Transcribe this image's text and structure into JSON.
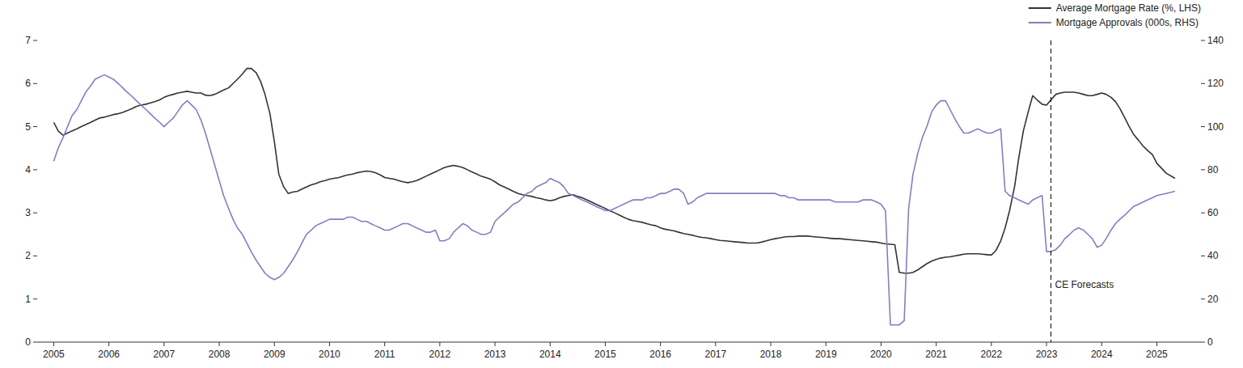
{
  "chart_data": {
    "type": "line",
    "x": [
      2005.0,
      2005.08,
      2005.17,
      2005.25,
      2005.33,
      2005.42,
      2005.5,
      2005.58,
      2005.67,
      2005.75,
      2005.83,
      2005.92,
      2006.0,
      2006.08,
      2006.17,
      2006.25,
      2006.33,
      2006.42,
      2006.5,
      2006.58,
      2006.67,
      2006.75,
      2006.83,
      2006.92,
      2007.0,
      2007.08,
      2007.17,
      2007.25,
      2007.33,
      2007.42,
      2007.5,
      2007.58,
      2007.67,
      2007.75,
      2007.83,
      2007.92,
      2008.0,
      2008.08,
      2008.17,
      2008.25,
      2008.33,
      2008.42,
      2008.5,
      2008.58,
      2008.67,
      2008.75,
      2008.83,
      2008.92,
      2009.0,
      2009.08,
      2009.17,
      2009.25,
      2009.33,
      2009.42,
      2009.5,
      2009.58,
      2009.67,
      2009.75,
      2009.83,
      2009.92,
      2010.0,
      2010.08,
      2010.17,
      2010.25,
      2010.33,
      2010.42,
      2010.5,
      2010.58,
      2010.67,
      2010.75,
      2010.83,
      2010.92,
      2011.0,
      2011.08,
      2011.17,
      2011.25,
      2011.33,
      2011.42,
      2011.5,
      2011.58,
      2011.67,
      2011.75,
      2011.83,
      2011.92,
      2012.0,
      2012.08,
      2012.17,
      2012.25,
      2012.33,
      2012.42,
      2012.5,
      2012.58,
      2012.67,
      2012.75,
      2012.83,
      2012.92,
      2013.0,
      2013.08,
      2013.17,
      2013.25,
      2013.33,
      2013.42,
      2013.5,
      2013.58,
      2013.67,
      2013.75,
      2013.83,
      2013.92,
      2014.0,
      2014.08,
      2014.17,
      2014.25,
      2014.33,
      2014.42,
      2014.5,
      2014.58,
      2014.67,
      2014.75,
      2014.83,
      2014.92,
      2015.0,
      2015.08,
      2015.17,
      2015.25,
      2015.33,
      2015.42,
      2015.5,
      2015.58,
      2015.67,
      2015.75,
      2015.83,
      2015.92,
      2016.0,
      2016.08,
      2016.17,
      2016.25,
      2016.33,
      2016.42,
      2016.5,
      2016.58,
      2016.67,
      2016.75,
      2016.83,
      2016.92,
      2017.0,
      2017.08,
      2017.17,
      2017.25,
      2017.33,
      2017.42,
      2017.5,
      2017.58,
      2017.67,
      2017.75,
      2017.83,
      2017.92,
      2018.0,
      2018.08,
      2018.17,
      2018.25,
      2018.33,
      2018.42,
      2018.5,
      2018.58,
      2018.67,
      2018.75,
      2018.83,
      2018.92,
      2019.0,
      2019.08,
      2019.17,
      2019.25,
      2019.33,
      2019.42,
      2019.5,
      2019.58,
      2019.67,
      2019.75,
      2019.83,
      2019.92,
      2020.0,
      2020.08,
      2020.17,
      2020.25,
      2020.33,
      2020.42,
      2020.5,
      2020.58,
      2020.67,
      2020.75,
      2020.83,
      2020.92,
      2021.0,
      2021.08,
      2021.17,
      2021.25,
      2021.33,
      2021.42,
      2021.5,
      2021.58,
      2021.67,
      2021.75,
      2021.83,
      2021.92,
      2022.0,
      2022.08,
      2022.17,
      2022.25,
      2022.33,
      2022.42,
      2022.5,
      2022.58,
      2022.67,
      2022.75,
      2022.83,
      2022.92,
      2023.0,
      2023.08,
      2023.17,
      2023.25,
      2023.33,
      2023.42,
      2023.5,
      2023.58,
      2023.67,
      2023.75,
      2023.83,
      2023.92,
      2024.0,
      2024.08,
      2024.17,
      2024.25,
      2024.33,
      2024.42,
      2024.5,
      2024.58,
      2024.67,
      2024.75,
      2024.83,
      2024.92,
      2025.0,
      2025.17,
      2025.33
    ],
    "series": [
      {
        "name": "Average Mortgage Rate (%, LHS)",
        "color": "#333333",
        "values": [
          5.1,
          4.9,
          4.8,
          4.85,
          4.9,
          4.95,
          5.0,
          5.05,
          5.1,
          5.15,
          5.2,
          5.22,
          5.25,
          5.28,
          5.3,
          5.33,
          5.37,
          5.42,
          5.47,
          5.5,
          5.52,
          5.55,
          5.58,
          5.62,
          5.68,
          5.72,
          5.75,
          5.78,
          5.8,
          5.82,
          5.8,
          5.78,
          5.78,
          5.73,
          5.72,
          5.75,
          5.8,
          5.85,
          5.9,
          6.0,
          6.1,
          6.22,
          6.35,
          6.35,
          6.25,
          6.05,
          5.75,
          5.3,
          4.65,
          3.9,
          3.6,
          3.45,
          3.48,
          3.5,
          3.55,
          3.6,
          3.65,
          3.68,
          3.72,
          3.75,
          3.78,
          3.8,
          3.82,
          3.85,
          3.88,
          3.9,
          3.93,
          3.95,
          3.97,
          3.96,
          3.93,
          3.88,
          3.82,
          3.8,
          3.78,
          3.75,
          3.72,
          3.7,
          3.72,
          3.75,
          3.8,
          3.85,
          3.9,
          3.95,
          4.0,
          4.05,
          4.08,
          4.1,
          4.08,
          4.05,
          4.0,
          3.95,
          3.9,
          3.85,
          3.82,
          3.78,
          3.72,
          3.65,
          3.6,
          3.55,
          3.5,
          3.45,
          3.42,
          3.4,
          3.38,
          3.35,
          3.33,
          3.3,
          3.28,
          3.3,
          3.35,
          3.38,
          3.4,
          3.42,
          3.38,
          3.35,
          3.3,
          3.25,
          3.2,
          3.15,
          3.1,
          3.05,
          3.0,
          2.95,
          2.9,
          2.85,
          2.82,
          2.8,
          2.78,
          2.75,
          2.72,
          2.7,
          2.65,
          2.62,
          2.6,
          2.58,
          2.55,
          2.52,
          2.5,
          2.48,
          2.45,
          2.43,
          2.42,
          2.4,
          2.38,
          2.36,
          2.35,
          2.34,
          2.33,
          2.32,
          2.31,
          2.3,
          2.3,
          2.3,
          2.32,
          2.35,
          2.38,
          2.4,
          2.42,
          2.44,
          2.45,
          2.45,
          2.46,
          2.46,
          2.46,
          2.45,
          2.44,
          2.43,
          2.42,
          2.41,
          2.4,
          2.4,
          2.39,
          2.38,
          2.37,
          2.36,
          2.35,
          2.34,
          2.33,
          2.32,
          2.3,
          2.28,
          2.27,
          2.26,
          1.62,
          1.6,
          1.6,
          1.62,
          1.68,
          1.75,
          1.82,
          1.88,
          1.92,
          1.95,
          1.97,
          1.98,
          2.0,
          2.02,
          2.04,
          2.05,
          2.05,
          2.05,
          2.04,
          2.03,
          2.02,
          2.12,
          2.35,
          2.65,
          3.05,
          3.6,
          4.3,
          4.9,
          5.35,
          5.72,
          5.62,
          5.52,
          5.5,
          5.62,
          5.75,
          5.78,
          5.8,
          5.8,
          5.8,
          5.78,
          5.75,
          5.72,
          5.72,
          5.75,
          5.78,
          5.75,
          5.68,
          5.58,
          5.42,
          5.2,
          5.0,
          4.82,
          4.68,
          4.55,
          4.45,
          4.35,
          4.15,
          3.92,
          3.8
        ]
      },
      {
        "name": "Mortgage Approvals (000s, RHS)",
        "color": "#8080c0",
        "axis": "y2",
        "values": [
          84,
          90,
          95,
          100,
          105,
          108,
          112,
          116,
          119,
          122,
          123,
          124,
          123,
          122,
          120,
          118,
          116,
          114,
          112,
          110,
          108,
          106,
          104,
          102,
          100,
          102,
          104,
          107,
          110,
          112,
          110,
          108,
          103,
          97,
          90,
          82,
          75,
          68,
          62,
          57,
          53,
          50,
          46,
          42,
          38,
          35,
          32,
          30,
          29,
          30,
          32,
          35,
          38,
          42,
          46,
          50,
          52,
          54,
          55,
          56,
          57,
          57,
          57,
          57,
          58,
          58,
          57,
          56,
          56,
          55,
          54,
          53,
          52,
          52,
          53,
          54,
          55,
          55,
          54,
          53,
          52,
          51,
          51,
          52,
          47,
          47,
          48,
          51,
          53,
          55,
          54,
          52,
          51,
          50,
          50,
          51,
          56,
          58,
          60,
          62,
          64,
          65,
          67,
          69,
          70,
          72,
          73,
          74,
          76,
          75,
          74,
          72,
          69,
          68,
          67,
          66,
          65,
          64,
          63,
          62,
          61,
          61,
          62,
          63,
          64,
          65,
          66,
          66,
          66,
          67,
          67,
          68,
          69,
          69,
          70,
          71,
          71,
          69,
          64,
          65,
          67,
          68,
          69,
          69,
          69,
          69,
          69,
          69,
          69,
          69,
          69,
          69,
          69,
          69,
          69,
          69,
          69,
          69,
          68,
          68,
          67,
          67,
          66,
          66,
          66,
          66,
          66,
          66,
          66,
          66,
          65,
          65,
          65,
          65,
          65,
          65,
          66,
          66,
          66,
          65,
          64,
          61,
          8,
          8,
          8,
          10,
          62,
          78,
          88,
          95,
          100,
          107,
          110,
          112,
          112,
          108,
          104,
          100,
          97,
          97,
          98,
          99,
          98,
          97,
          97,
          98,
          99,
          70,
          68,
          67,
          66,
          65,
          64,
          66,
          67,
          68,
          42,
          42,
          43,
          45,
          48,
          50,
          52,
          53,
          52,
          50,
          48,
          44,
          45,
          48,
          52,
          55,
          57,
          59,
          61,
          63,
          64,
          65,
          66,
          67,
          68,
          69,
          70
        ]
      }
    ],
    "xlim": [
      2004.7,
      2025.8
    ],
    "xticks": [
      2005,
      2006,
      2007,
      2008,
      2009,
      2010,
      2011,
      2012,
      2013,
      2014,
      2015,
      2016,
      2017,
      2018,
      2019,
      2020,
      2021,
      2022,
      2023,
      2024,
      2025
    ],
    "ylim": [
      0,
      7
    ],
    "yticks": [
      0,
      1,
      2,
      3,
      4,
      5,
      6,
      7
    ],
    "y2lim": [
      0,
      140
    ],
    "y2ticks": [
      0,
      20,
      40,
      60,
      80,
      100,
      120,
      140
    ],
    "annotations": [
      {
        "x": 2023.08,
        "text": "CE Forecasts",
        "line_style": "dashed"
      }
    ],
    "legend": "upper right",
    "grid": false
  }
}
